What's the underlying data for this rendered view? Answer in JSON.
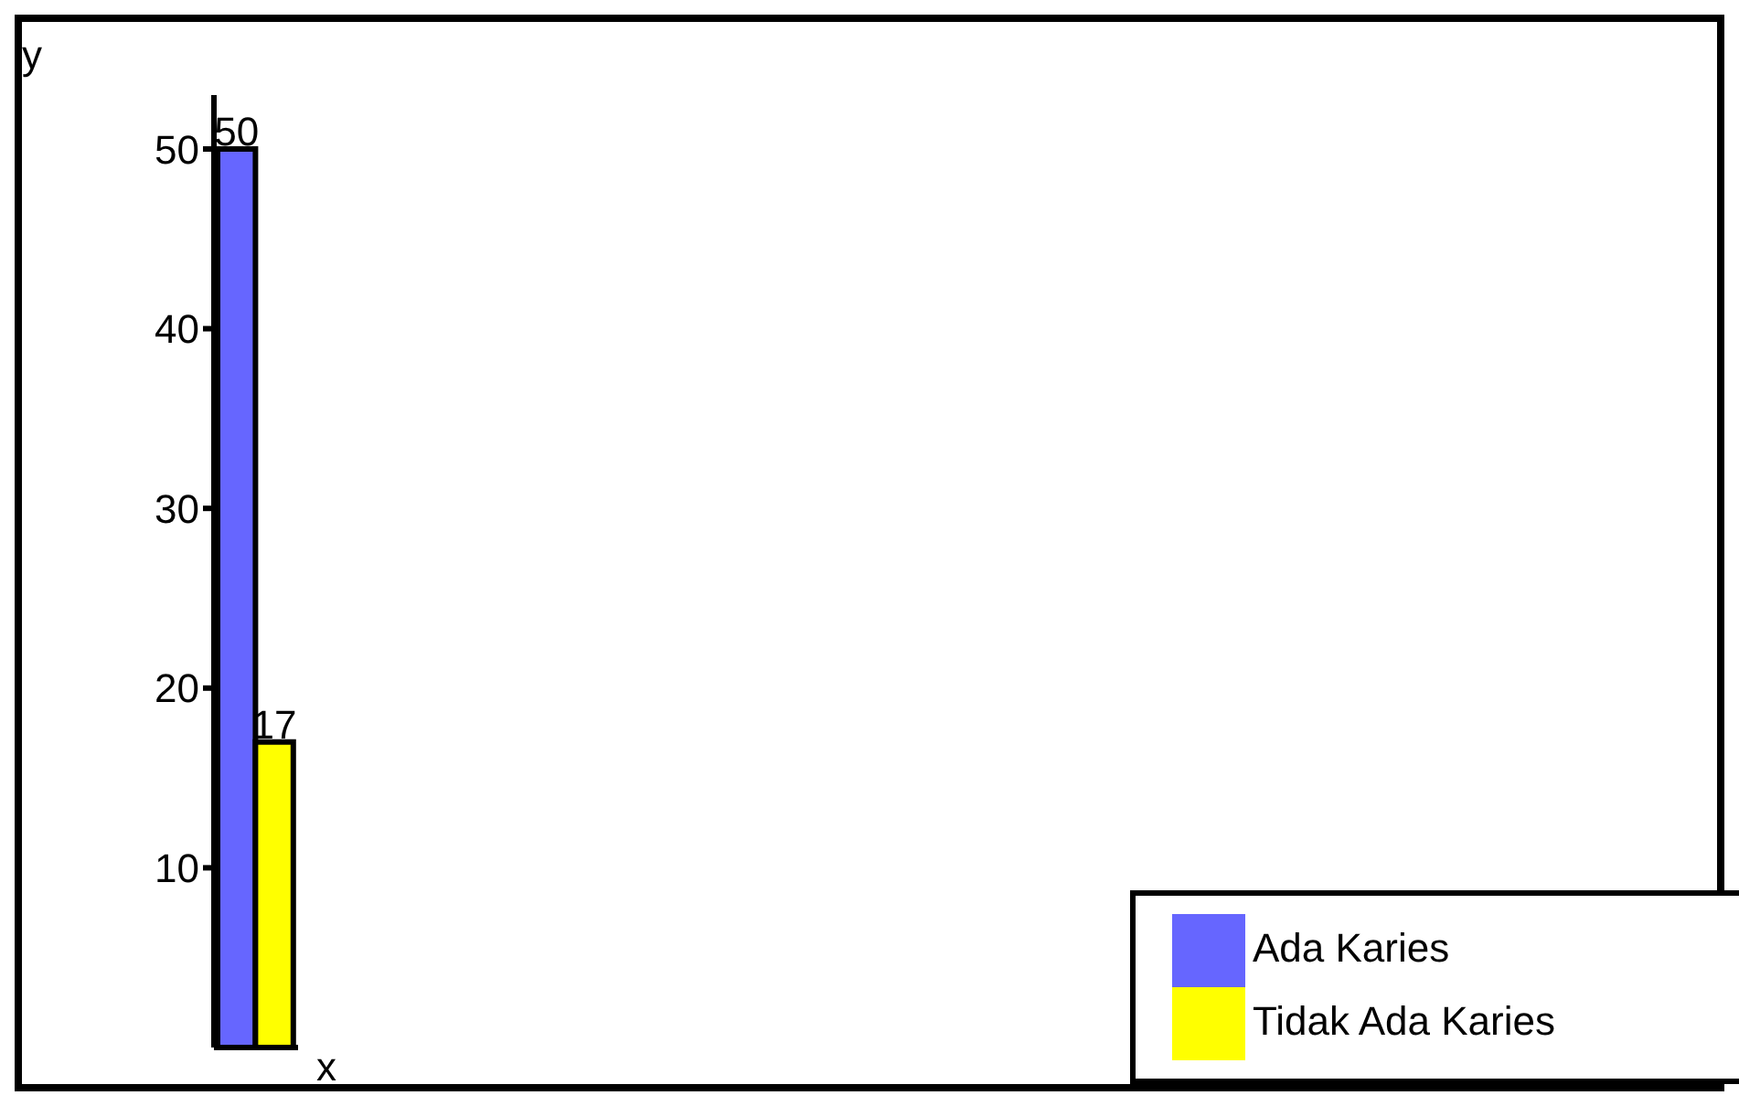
{
  "chart_data": {
    "type": "bar",
    "xlabel": "x",
    "ylabel": "y",
    "categories": [
      null
    ],
    "series": [
      {
        "name": "Ada Karies",
        "color": "#6666ff",
        "values": [
          50
        ]
      },
      {
        "name": "Tidak Ada Karies",
        "color": "#ffff00",
        "values": [
          17
        ]
      }
    ],
    "ylim": [
      0,
      53
    ],
    "yticks": [
      10,
      20,
      30,
      40,
      50
    ],
    "grid": false,
    "legend": "bottom right",
    "data_labels": true
  }
}
